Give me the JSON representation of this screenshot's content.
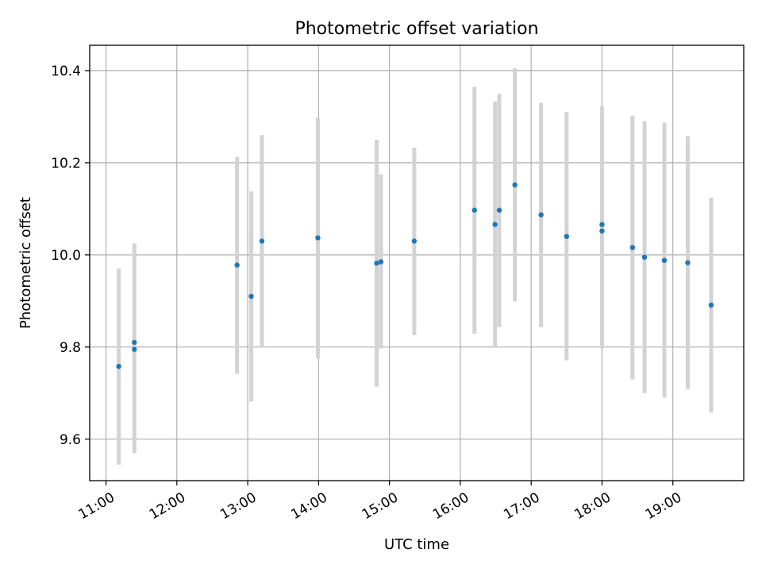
{
  "chart_data": {
    "type": "scatter",
    "title": "Photometric offset variation",
    "xlabel": "UTC time",
    "ylabel": "Photometric offset",
    "x_unit": "UTC time (hours)",
    "xlim": [
      10.77,
      20.0
    ],
    "ylim": [
      9.51,
      10.455
    ],
    "x_ticks": [
      {
        "value": 11,
        "label": "11:00"
      },
      {
        "value": 12,
        "label": "12:00"
      },
      {
        "value": 13,
        "label": "13:00"
      },
      {
        "value": 14,
        "label": "14:00"
      },
      {
        "value": 15,
        "label": "15:00"
      },
      {
        "value": 16,
        "label": "16:00"
      },
      {
        "value": 17,
        "label": "17:00"
      },
      {
        "value": 18,
        "label": "18:00"
      },
      {
        "value": 19,
        "label": "19:00"
      }
    ],
    "y_ticks": [
      {
        "value": 9.6,
        "label": "9.6"
      },
      {
        "value": 9.8,
        "label": "9.8"
      },
      {
        "value": 10.0,
        "label": "10.0"
      },
      {
        "value": 10.2,
        "label": "10.2"
      },
      {
        "value": 10.4,
        "label": "10.4"
      }
    ],
    "grid": true,
    "marker_color": "#1f77b4",
    "errorbar_color": "#d3d3d3",
    "points": [
      {
        "x": 11.18,
        "y": 9.758,
        "ylow": 9.545,
        "yhigh": 9.97
      },
      {
        "x": 11.4,
        "y": 9.81,
        "ylow": null,
        "yhigh": null
      },
      {
        "x": 11.4,
        "y": 9.795,
        "ylow": 9.57,
        "yhigh": 10.025
      },
      {
        "x": 12.85,
        "y": 9.978,
        "ylow": 9.742,
        "yhigh": 10.213
      },
      {
        "x": 13.05,
        "y": 9.91,
        "ylow": 9.682,
        "yhigh": 10.138
      },
      {
        "x": 13.2,
        "y": 10.03,
        "ylow": 9.8,
        "yhigh": 10.26
      },
      {
        "x": 13.99,
        "y": 10.037,
        "ylow": 9.775,
        "yhigh": 10.298
      },
      {
        "x": 14.82,
        "y": 9.982,
        "ylow": 9.714,
        "yhigh": 10.25
      },
      {
        "x": 14.88,
        "y": 9.985,
        "ylow": 9.797,
        "yhigh": 10.175
      },
      {
        "x": 15.35,
        "y": 10.03,
        "ylow": 9.826,
        "yhigh": 10.233
      },
      {
        "x": 16.2,
        "y": 10.097,
        "ylow": 9.829,
        "yhigh": 10.365
      },
      {
        "x": 16.49,
        "y": 10.066,
        "ylow": 9.8,
        "yhigh": 10.333
      },
      {
        "x": 16.55,
        "y": 10.097,
        "ylow": 9.843,
        "yhigh": 10.35
      },
      {
        "x": 16.77,
        "y": 10.152,
        "ylow": 9.899,
        "yhigh": 10.405
      },
      {
        "x": 17.14,
        "y": 10.087,
        "ylow": 9.843,
        "yhigh": 10.33
      },
      {
        "x": 17.5,
        "y": 10.04,
        "ylow": 9.771,
        "yhigh": 10.31
      },
      {
        "x": 18.0,
        "y": 10.066,
        "ylow": 9.797,
        "yhigh": 10.323
      },
      {
        "x": 18.0,
        "y": 10.052,
        "ylow": null,
        "yhigh": null
      },
      {
        "x": 18.43,
        "y": 10.016,
        "ylow": 9.73,
        "yhigh": 10.302
      },
      {
        "x": 18.6,
        "y": 9.995,
        "ylow": 9.7,
        "yhigh": 10.29
      },
      {
        "x": 18.88,
        "y": 9.988,
        "ylow": 9.69,
        "yhigh": 10.287
      },
      {
        "x": 19.21,
        "y": 9.983,
        "ylow": 9.709,
        "yhigh": 10.258
      },
      {
        "x": 19.54,
        "y": 9.891,
        "ylow": 9.658,
        "yhigh": 10.124
      }
    ]
  }
}
